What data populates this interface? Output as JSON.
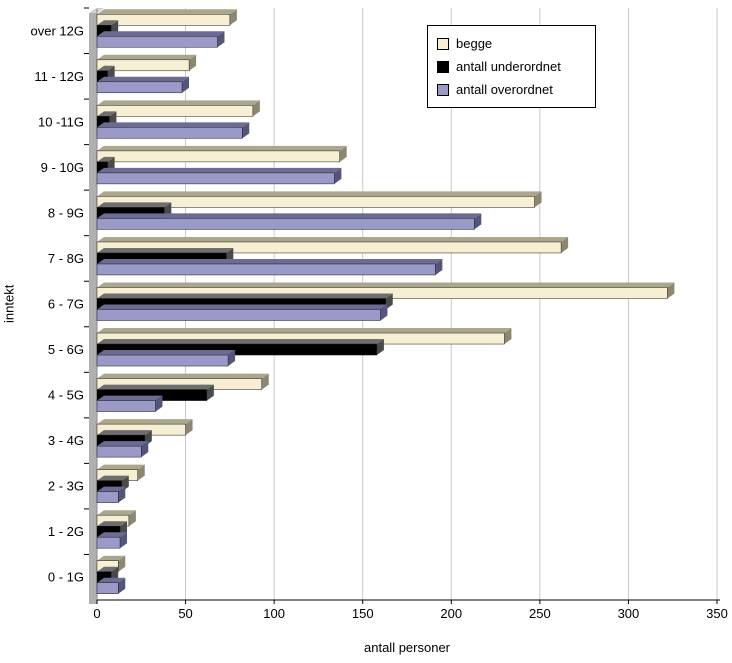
{
  "chart_data": {
    "type": "bar",
    "orientation": "horizontal",
    "title": "",
    "xlabel": "antall personer",
    "ylabel": "inntekt",
    "xlim": [
      0,
      350
    ],
    "xticks": [
      0,
      50,
      100,
      150,
      200,
      250,
      300,
      350
    ],
    "grid": true,
    "legend_position": "top-right-inside",
    "categories": [
      "over 12G",
      "11 - 12G",
      "10 -11G",
      "9 - 10G",
      "8 - 9G",
      "7 - 8G",
      "6 - 7G",
      "5 - 6G",
      "4 - 5G",
      "3 - 4G",
      "2 - 3G",
      "1 - 2G",
      "0 - 1G"
    ],
    "series": [
      {
        "name": "begge",
        "color": "#F6EFD4",
        "top_color": "#ABA68C",
        "side_color": "#8C8770",
        "values": [
          75,
          52,
          88,
          137,
          247,
          262,
          322,
          230,
          93,
          50,
          23,
          18,
          12
        ]
      },
      {
        "name": "antall underordnet",
        "color": "#000000",
        "top_color": "#6E6E6E",
        "side_color": "#4A4A4A",
        "values": [
          8,
          6,
          7,
          6,
          38,
          73,
          163,
          158,
          62,
          27,
          14,
          13,
          8
        ]
      },
      {
        "name": "antall overordnet",
        "color": "#9A99C7",
        "top_color": "#6C6B93",
        "side_color": "#55547A",
        "values": [
          68,
          48,
          82,
          134,
          213,
          191,
          160,
          74,
          33,
          25,
          12,
          13,
          12
        ]
      }
    ],
    "colors": {
      "grid": "#C9C9C9",
      "axis": "#000000",
      "wall": "#B0B0B0",
      "wall_top": "#D0D0D0",
      "wall_edge": "#8A8A8A",
      "background": "#FFFFFF",
      "legend_border": "#000000"
    }
  }
}
